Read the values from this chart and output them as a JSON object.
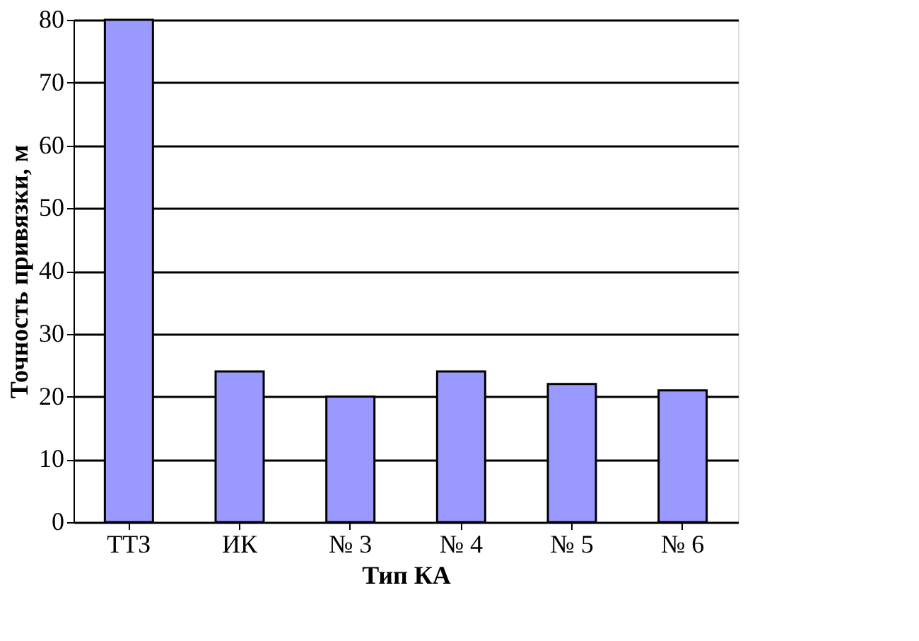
{
  "chart_data": {
    "type": "bar",
    "xlabel": "Тип КА",
    "ylabel": "Точность привязки, м",
    "categories": [
      "ТТЗ",
      "ИК",
      "№ 3",
      "№ 4",
      "№ 5",
      "№ 6"
    ],
    "values": [
      80,
      24,
      20,
      24,
      22,
      21
    ],
    "color": "#9999ff",
    "ylim": [
      0,
      80
    ],
    "yticks": [
      0,
      10,
      20,
      30,
      40,
      50,
      60,
      70,
      80
    ],
    "grid": "y"
  }
}
